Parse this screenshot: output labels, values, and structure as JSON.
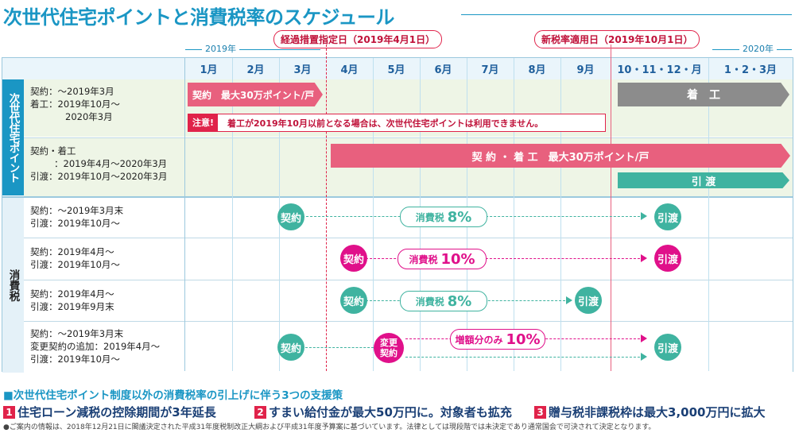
{
  "title": "次世代住宅ポイントと消費税率のスケジュール",
  "years": {
    "y2019": "2019年",
    "y2020": "2020年"
  },
  "markers": {
    "transitional": "経過措置指定日（2019年4月1日）",
    "new_rate": "新税率適用日（2019年10月1日）"
  },
  "months": [
    "1月",
    "2月",
    "3月",
    "4月",
    "5月",
    "6月",
    "7月",
    "8月",
    "9月",
    "10・11・12・月",
    "1・2・3月"
  ],
  "sidebar": {
    "points": "次世代住宅ポイント",
    "tax": "消費税"
  },
  "point_rows": [
    {
      "cond1": "契約：～2019年3月",
      "cond2": "着工：2019年10月～",
      "cond3": "2020年3月",
      "bar_label": "契約　最大30万ポイント/戸",
      "bar2_label": "着　工",
      "notice_tag": "注意!",
      "notice_text": "着工が2019年10月以前となる場合は、次世代住宅ポイントは利用できません。"
    },
    {
      "cond1": "契約・着工",
      "cond2": "：2019年4月～2020年3月",
      "cond3": "引渡：2019年10月～2020年3月",
      "bar_label": "契 約 ・ 着 工　最大30万ポイント/戸",
      "bar2_label": "引 渡"
    }
  ],
  "tax_rows": [
    {
      "cond1": "契約：～2019年3月末",
      "cond2": "引渡：2019年10月～",
      "start": "契約",
      "rate_label": "消費税",
      "rate": "8%",
      "end": "引渡"
    },
    {
      "cond1": "契約：2019年4月～",
      "cond2": "引渡：2019年10月～",
      "start": "契約",
      "rate_label": "消費税",
      "rate": "10%",
      "end": "引渡"
    },
    {
      "cond1": "契約：2019年4月～",
      "cond2": "引渡：2019年9月末",
      "start": "契約",
      "rate_label": "消費税",
      "rate": "8%",
      "end": "引渡"
    },
    {
      "cond1": "契約：～2019年3月末",
      "cond2": "変更契約の追加：2019年4月～",
      "cond3": "引渡：2019年10月～",
      "start": "契約",
      "change": "変更契約",
      "rate_label": "増額分のみ",
      "rate": "10%",
      "end": "引渡"
    }
  ],
  "measures": {
    "heading": "■次世代住宅ポイント制度以外の消費税率の引上げに伴う3つの支援策",
    "items": [
      {
        "num": "1",
        "text": "住宅ローン減税の控除期間が3年延長"
      },
      {
        "num": "2",
        "text": "すまい給付金が最大50万円に。対象者も拡充"
      },
      {
        "num": "3",
        "text": "贈与税非課税枠は最大3,000万円に拡大"
      }
    ]
  },
  "footnote": "●ご案内の情報は、2018年12月21日に閣議決定された平成31年度税制改正大綱および平成31年度予算案に基づいています。法律としては現段階では未決定であり通常国会で可決されて決定となります。",
  "colors": {
    "blue": "#1a96c4",
    "pink": "#e8607e",
    "magenta": "#e0108a",
    "teal": "#3fb3a0",
    "gray": "#8c8c8c",
    "red": "#e0234a"
  }
}
